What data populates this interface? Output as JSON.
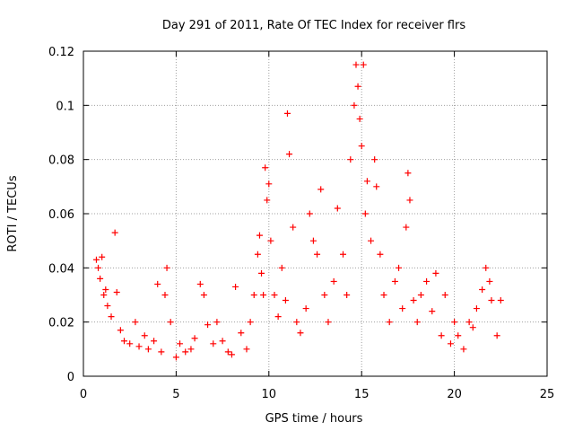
{
  "chart_data": {
    "type": "scatter",
    "title": "Day 291 of 2011, Rate Of TEC Index for receiver flrs",
    "xlabel": "GPS time / hours",
    "ylabel": "ROTI / TECUs",
    "xlim": [
      0,
      25
    ],
    "ylim": [
      0,
      0.12
    ],
    "xticks": [
      0,
      5,
      10,
      15,
      20,
      25
    ],
    "yticks": [
      0,
      0.02,
      0.04,
      0.06,
      0.08,
      0.1,
      0.12
    ],
    "xtick_labels": [
      "0",
      "5",
      "10",
      "15",
      "20",
      "25"
    ],
    "ytick_labels": [
      "0",
      "0.02",
      "0.04",
      "0.06",
      "0.08",
      "0.1",
      "0.12"
    ],
    "grid": true,
    "legend": "none",
    "marker": "+",
    "color": "#ff0000",
    "series": [
      {
        "x": [
          0.7,
          0.8,
          0.9,
          1.0,
          1.1,
          1.2,
          1.3,
          1.5,
          1.7,
          1.8,
          2.0,
          2.2,
          2.5,
          2.8,
          3.0,
          3.3,
          3.5,
          3.8,
          4.0,
          4.2,
          4.4,
          4.5,
          4.7,
          5.0,
          5.2,
          5.5,
          5.8,
          6.0,
          6.3,
          6.5,
          6.7,
          7.0,
          7.2,
          7.5,
          7.8,
          8.0,
          8.2,
          8.5,
          8.8,
          9.0,
          9.2,
          9.4,
          9.5,
          9.6,
          9.7,
          9.8,
          9.9,
          10.0,
          10.1,
          10.3,
          10.5,
          10.7,
          10.9,
          11.0,
          11.1,
          11.3,
          11.5,
          11.7,
          12.0,
          12.2,
          12.4,
          12.6,
          12.8,
          13.0,
          13.2,
          13.5,
          13.7,
          14.0,
          14.2,
          14.4,
          14.6,
          14.7,
          14.8,
          14.9,
          15.0,
          15.1,
          15.2,
          15.3,
          15.5,
          15.7,
          15.8,
          16.0,
          16.2,
          16.5,
          16.8,
          17.0,
          17.2,
          17.4,
          17.5,
          17.6,
          17.8,
          18.0,
          18.2,
          18.5,
          18.8,
          19.0,
          19.3,
          19.5,
          19.8,
          20.0,
          20.2,
          20.5,
          20.8,
          21.0,
          21.2,
          21.5,
          21.7,
          21.9,
          22.0,
          22.3,
          22.5
        ],
        "y": [
          0.043,
          0.04,
          0.036,
          0.044,
          0.03,
          0.032,
          0.026,
          0.022,
          0.053,
          0.031,
          0.017,
          0.013,
          0.012,
          0.02,
          0.011,
          0.015,
          0.01,
          0.013,
          0.034,
          0.009,
          0.03,
          0.04,
          0.02,
          0.007,
          0.012,
          0.009,
          0.01,
          0.014,
          0.034,
          0.03,
          0.019,
          0.012,
          0.02,
          0.013,
          0.009,
          0.008,
          0.033,
          0.016,
          0.01,
          0.02,
          0.03,
          0.045,
          0.052,
          0.038,
          0.03,
          0.077,
          0.065,
          0.071,
          0.05,
          0.03,
          0.022,
          0.04,
          0.028,
          0.097,
          0.082,
          0.055,
          0.02,
          0.016,
          0.025,
          0.06,
          0.05,
          0.045,
          0.069,
          0.03,
          0.02,
          0.035,
          0.062,
          0.045,
          0.03,
          0.08,
          0.1,
          0.115,
          0.107,
          0.095,
          0.085,
          0.115,
          0.06,
          0.072,
          0.05,
          0.08,
          0.07,
          0.045,
          0.03,
          0.02,
          0.035,
          0.04,
          0.025,
          0.055,
          0.075,
          0.065,
          0.028,
          0.02,
          0.03,
          0.035,
          0.024,
          0.038,
          0.015,
          0.03,
          0.012,
          0.02,
          0.015,
          0.01,
          0.02,
          0.018,
          0.025,
          0.032,
          0.04,
          0.035,
          0.028,
          0.015,
          0.028
        ]
      }
    ]
  }
}
